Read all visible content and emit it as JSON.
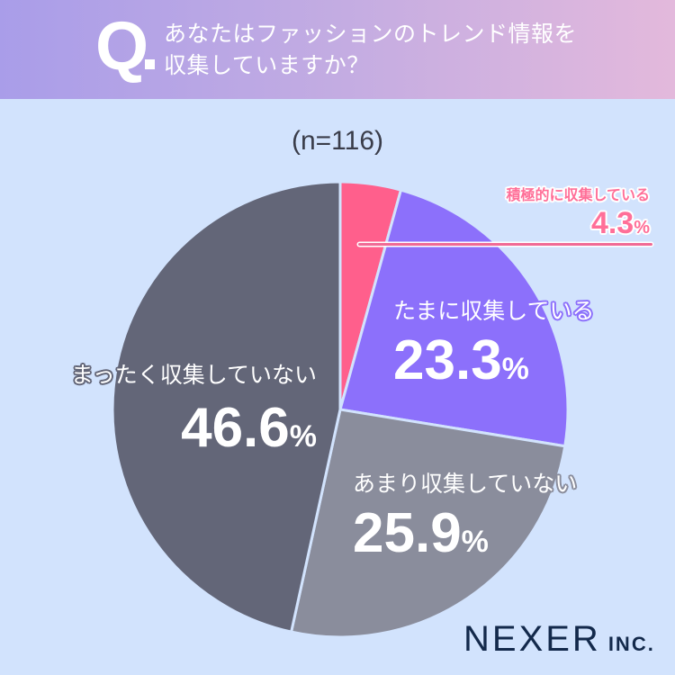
{
  "header": {
    "q_mark": "Q",
    "question_line1": "あなたはファッションのトレンド情報を",
    "question_line2": "収集していますか？"
  },
  "sample_size": "(n=116)",
  "logo": {
    "name": "NEXER",
    "suffix": "INC."
  },
  "slices": [
    {
      "label": "積極的に収集している",
      "value": "4.3",
      "unit": "%",
      "color": "#ff5f8c"
    },
    {
      "label": "たまに収集している",
      "value": "23.3",
      "unit": "%",
      "color": "#8c70fb"
    },
    {
      "label": "あまり収集していない",
      "value": "25.9",
      "unit": "%",
      "color": "#8a8d9c"
    },
    {
      "label": "まったく収集していない",
      "value": "46.6",
      "unit": "%",
      "color": "#636678"
    }
  ],
  "chart_data": {
    "type": "pie",
    "title": "あなたはファッションのトレンド情報を収集していますか？",
    "subtitle": "(n=116)",
    "categories": [
      "積極的に収集している",
      "たまに収集している",
      "あまり収集していない",
      "まったく収集していない"
    ],
    "values": [
      4.3,
      23.3,
      25.9,
      46.6
    ],
    "unit": "%",
    "colors": [
      "#ff5f8c",
      "#8c70fb",
      "#8a8d9c",
      "#636678"
    ],
    "start_angle": "12 o'clock",
    "direction": "clockwise",
    "legend": "none (direct labels)"
  }
}
